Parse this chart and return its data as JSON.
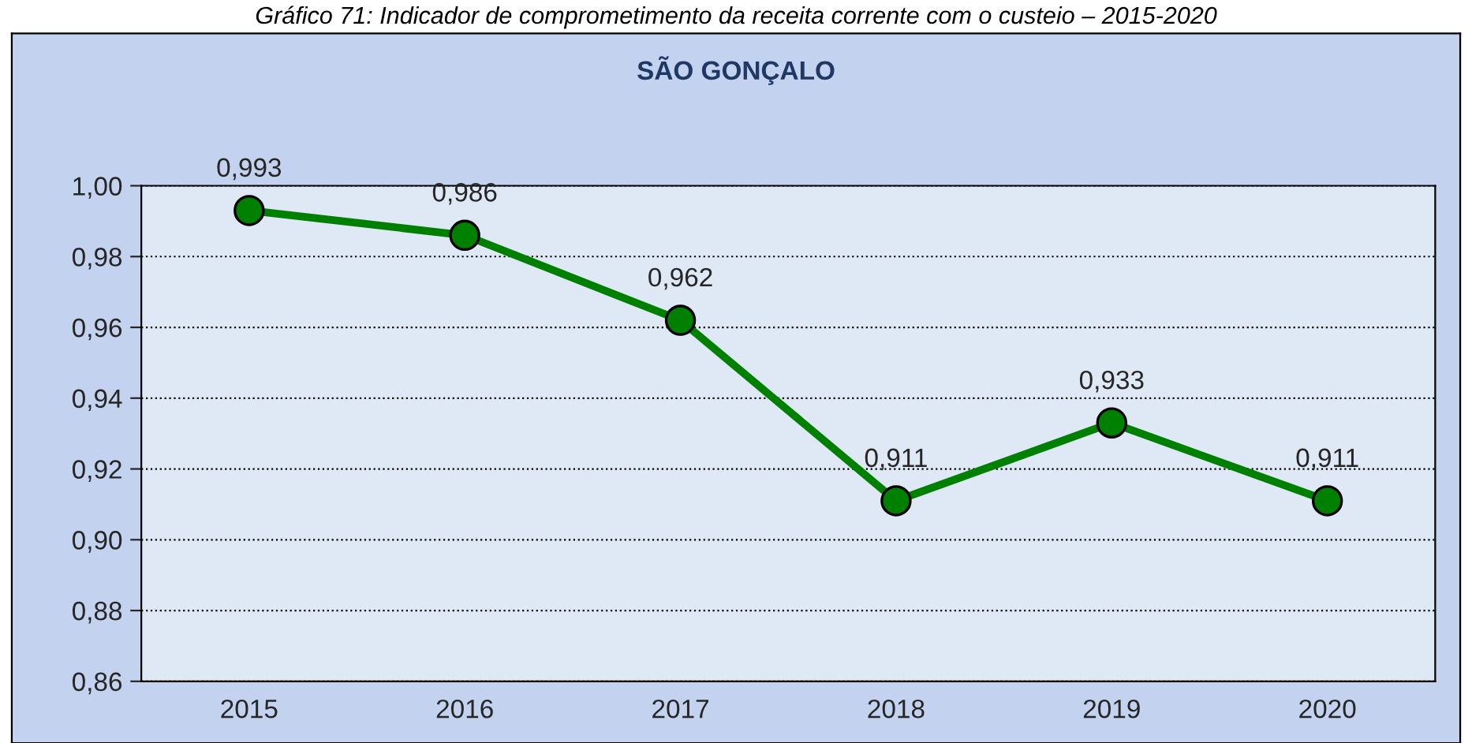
{
  "chart_data": {
    "type": "line",
    "title": "SÃO GONÇALO",
    "annotations": [
      "Gráfico 71: Indicador de comprometimento da receita corrente com o custeio – 2015-2020"
    ],
    "categories": [
      "2015",
      "2016",
      "2017",
      "2018",
      "2019",
      "2020"
    ],
    "series": [
      {
        "color": "#008000",
        "values": [
          0.993,
          0.986,
          0.962,
          0.911,
          0.933,
          0.911
        ]
      }
    ],
    "value_labels": [
      "0,993",
      "0,986",
      "0,962",
      "0,911",
      "0,933",
      "0,911"
    ],
    "ylim": [
      0.86,
      1.0
    ],
    "yticks": [
      {
        "value": 0.86,
        "label": "0,86"
      },
      {
        "value": 0.88,
        "label": "0,88"
      },
      {
        "value": 0.9,
        "label": "0,90"
      },
      {
        "value": 0.92,
        "label": "0,92"
      },
      {
        "value": 0.94,
        "label": "0,94"
      },
      {
        "value": 0.96,
        "label": "0,96"
      },
      {
        "value": 0.98,
        "label": "0,98"
      },
      {
        "value": 1.0,
        "label": "1,00"
      }
    ],
    "grid": "y",
    "marker": "circle",
    "line_style": "solid",
    "legend": false
  }
}
